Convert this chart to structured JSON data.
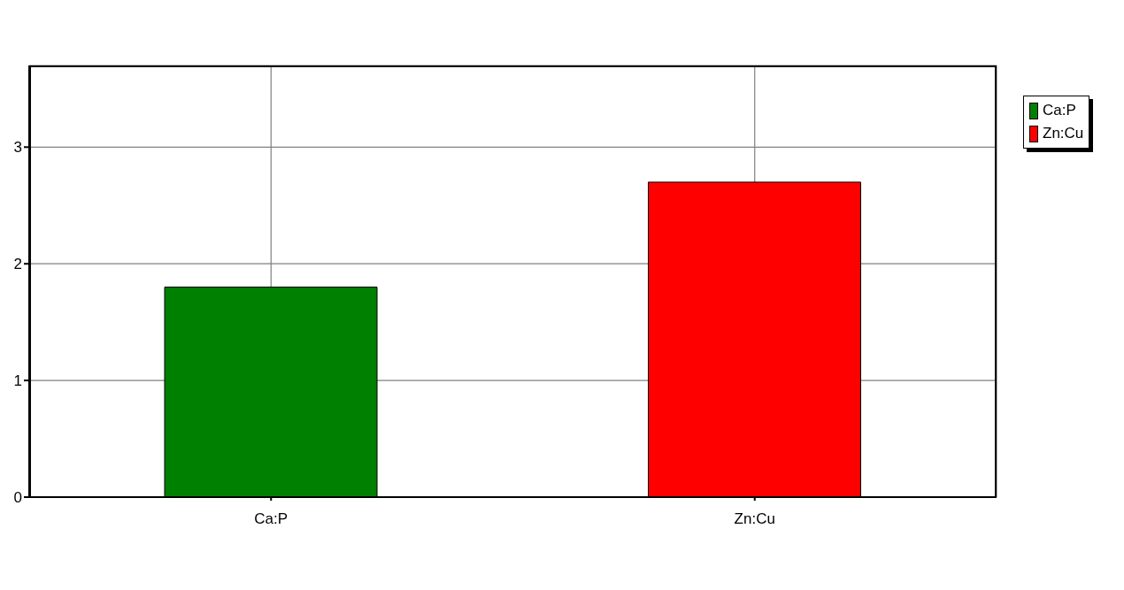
{
  "chart_data": {
    "type": "bar",
    "categories": [
      "Ca:P",
      "Zn:Cu"
    ],
    "series": [
      {
        "name": "Ca:P",
        "color": "#008000",
        "values": [
          1.8,
          null
        ]
      },
      {
        "name": "Zn:Cu",
        "color": "#ff0000",
        "values": [
          null,
          2.7
        ]
      }
    ],
    "stacked": true,
    "ylim": [
      0,
      3.7
    ],
    "yticks": [
      0,
      1,
      2,
      3
    ],
    "grid": true,
    "legend": "top right"
  }
}
